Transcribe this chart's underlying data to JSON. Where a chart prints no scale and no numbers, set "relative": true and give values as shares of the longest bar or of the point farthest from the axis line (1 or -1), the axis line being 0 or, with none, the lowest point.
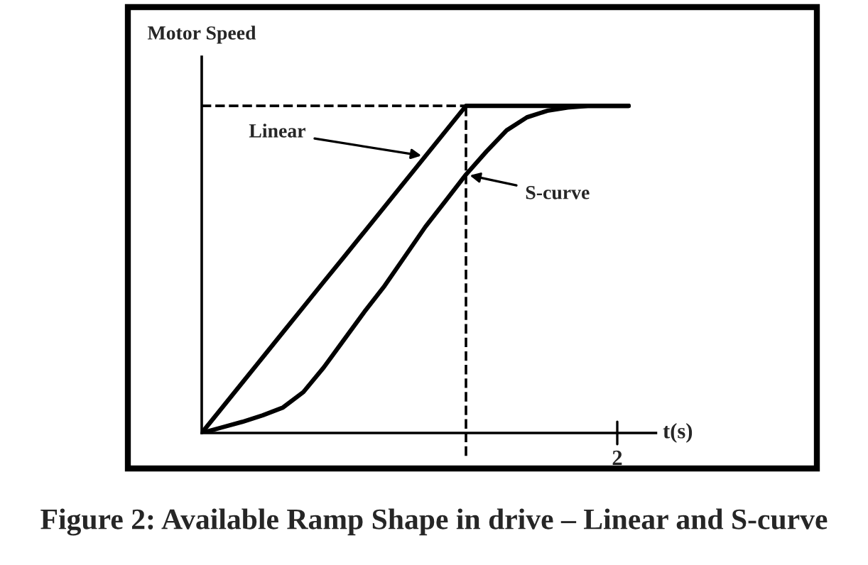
{
  "chart_data": {
    "type": "line",
    "relative": true,
    "xlabel": "t(s)",
    "ylabel": "Motor Speed",
    "categories": [
      null,
      null,
      null,
      null,
      null,
      null,
      null,
      null,
      null,
      null,
      null,
      null,
      null,
      null,
      null,
      null,
      null,
      null,
      null,
      null,
      null,
      null
    ],
    "series": [
      {
        "color": "#000000",
        "values": [
          0,
          0.077,
          0.154,
          0.231,
          0.308,
          0.385,
          0.462,
          0.538,
          0.615,
          0.692,
          0.769,
          0.846,
          0.923,
          1,
          1,
          1,
          1,
          1,
          1,
          1,
          1,
          1
        ]
      },
      {
        "color": "#000000",
        "values": [
          0,
          0.017,
          0.034,
          0.054,
          0.078,
          0.125,
          0.2,
          0.285,
          0.37,
          0.45,
          0.54,
          0.63,
          0.71,
          0.79,
          0.86,
          0.925,
          0.965,
          0.985,
          0.995,
          1,
          1,
          1
        ]
      }
    ],
    "ref_lines": [
      {
        "axis": "y",
        "value": 1,
        "line_style": "dashed"
      }
    ],
    "annotations": [
      "Linear",
      "S-curve",
      "2",
      "Figure 2: Available Ramp Shape in drive – Linear and S-curve"
    ],
    "legend": false,
    "line_style": "solid",
    "marker": "none"
  }
}
